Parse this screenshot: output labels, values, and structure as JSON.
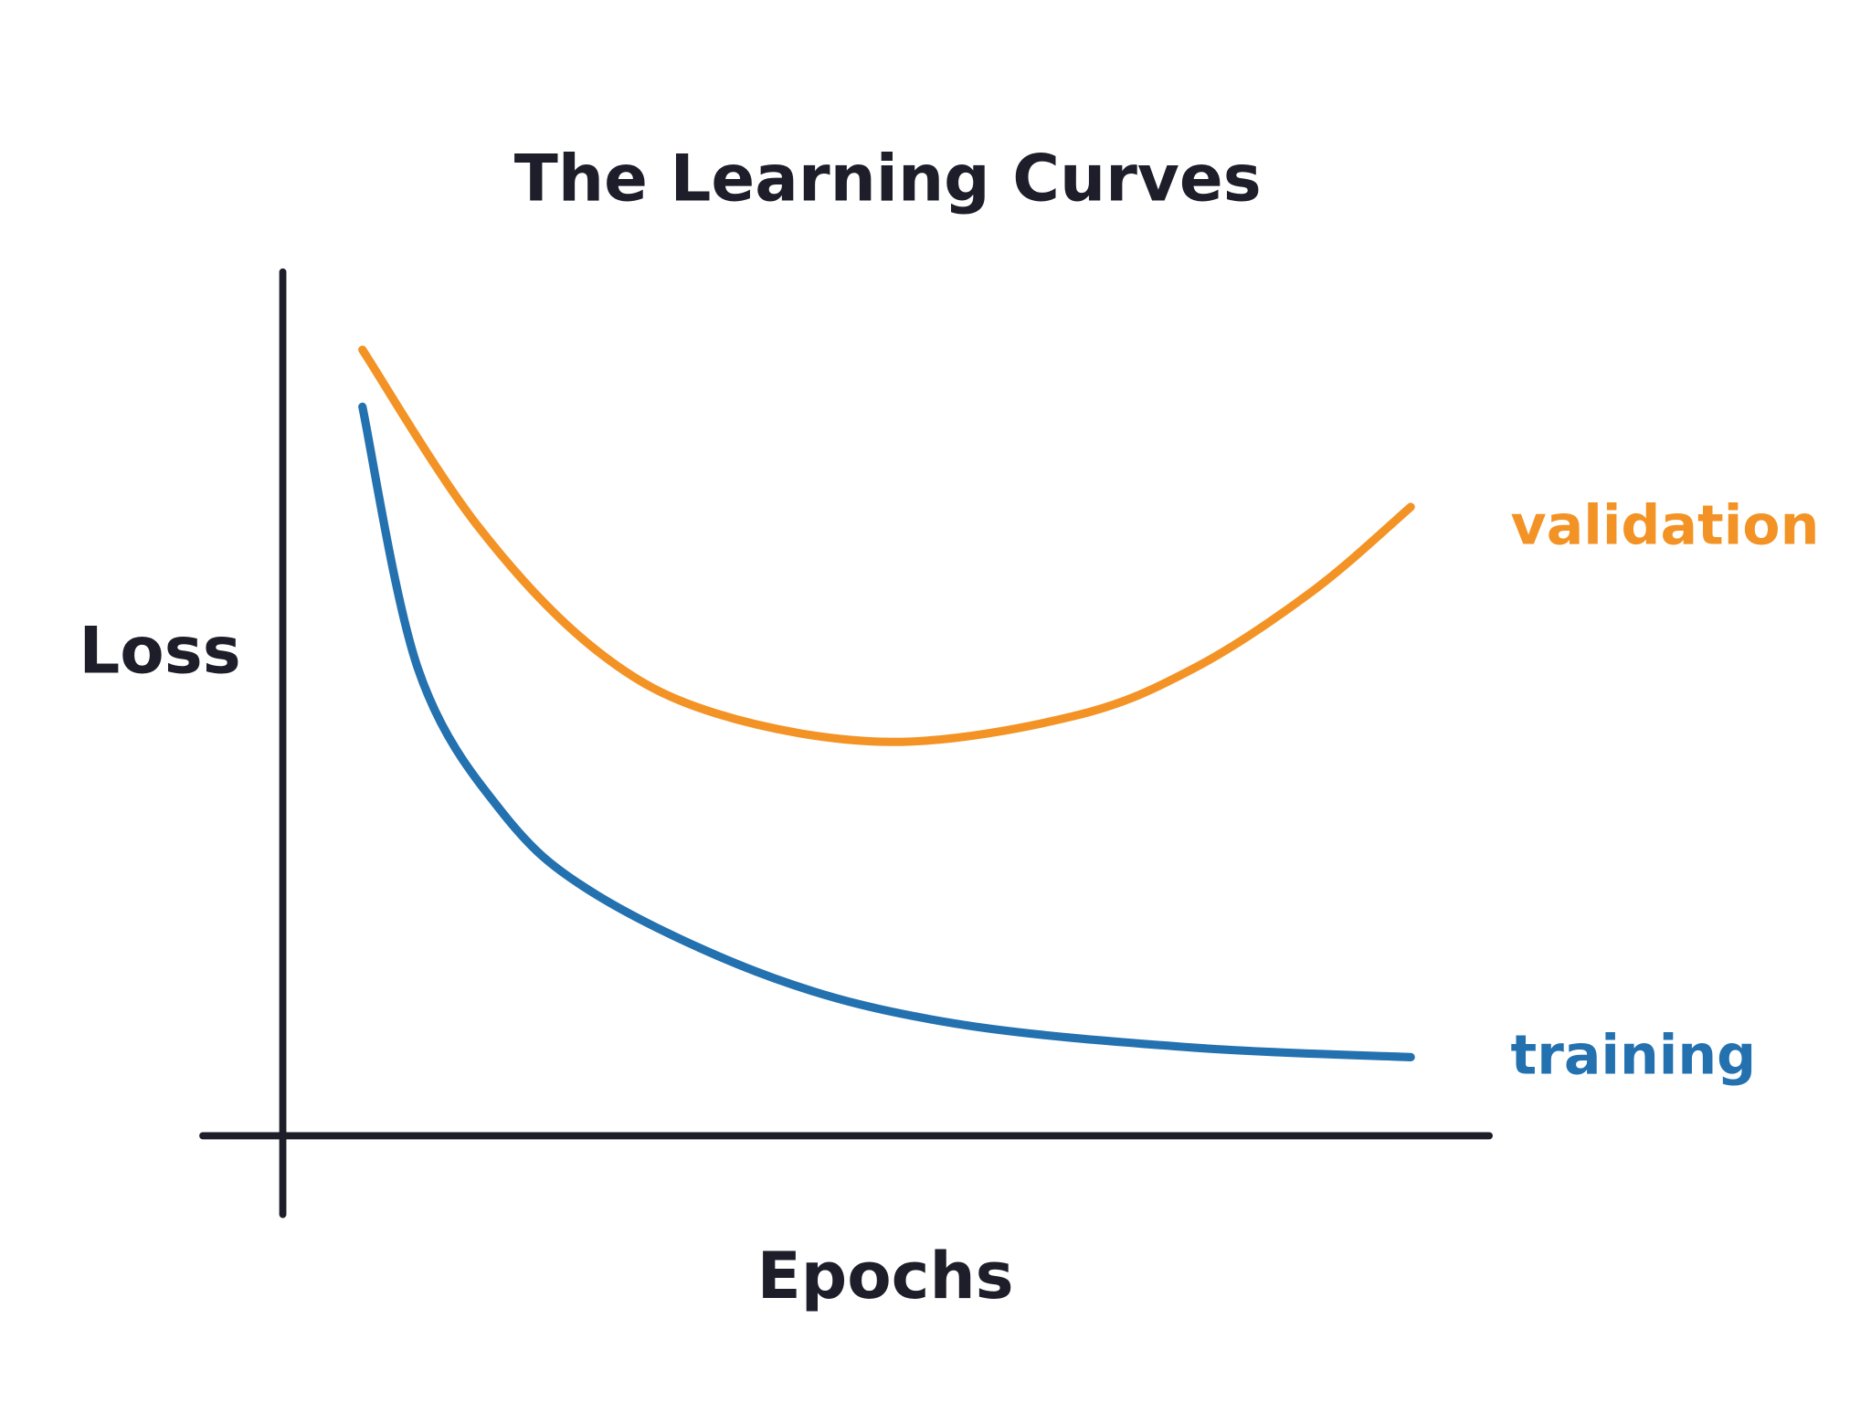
{
  "chart_data": {
    "type": "line",
    "title": "The Learning Curves",
    "xlabel": "Epochs",
    "ylabel": "Loss",
    "xlim": [
      0,
      1
    ],
    "ylim": [
      0,
      1
    ],
    "grid": false,
    "ticks": false,
    "legend": "inline-right",
    "axis_color": "#1e1e2a",
    "series": [
      {
        "name": "validation",
        "color": "#f39325",
        "x": [
          0.066,
          0.161,
          0.26,
          0.359,
          0.504,
          0.656,
          0.755,
          0.854,
          0.935
        ],
        "y": [
          0.91,
          0.707,
          0.562,
          0.489,
          0.456,
          0.486,
          0.541,
          0.631,
          0.728
        ]
      },
      {
        "name": "training",
        "color": "#2471b0",
        "x": [
          0.066,
          0.112,
          0.181,
          0.26,
          0.408,
          0.557,
          0.755,
          0.935
        ],
        "y": [
          0.844,
          0.541,
          0.376,
          0.279,
          0.182,
          0.13,
          0.102,
          0.091
        ]
      }
    ]
  }
}
